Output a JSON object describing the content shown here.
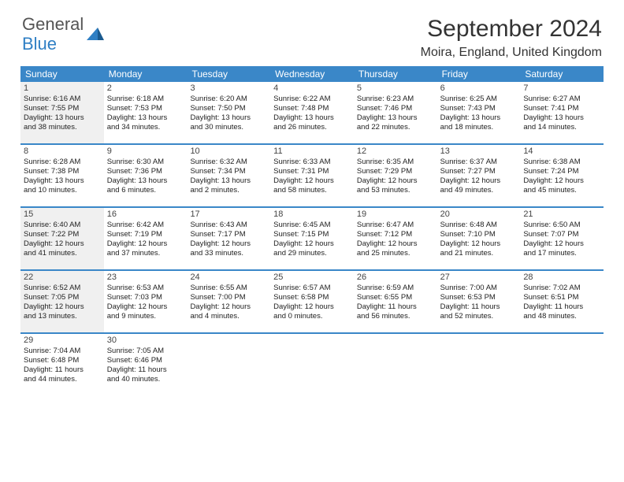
{
  "logo": {
    "text1": "General",
    "text2": "Blue",
    "color1": "#666666",
    "color2": "#2f7fc4"
  },
  "title": "September 2024",
  "location": "Moira, England, United Kingdom",
  "header_bg": "#3a87c8",
  "day_headers": [
    "Sunday",
    "Monday",
    "Tuesday",
    "Wednesday",
    "Thursday",
    "Friday",
    "Saturday"
  ],
  "shaded_days": [
    1,
    15,
    22
  ],
  "weeks": [
    [
      {
        "n": "1",
        "sr": "Sunrise: 6:16 AM",
        "ss": "Sunset: 7:55 PM",
        "d1": "Daylight: 13 hours",
        "d2": "and 38 minutes."
      },
      {
        "n": "2",
        "sr": "Sunrise: 6:18 AM",
        "ss": "Sunset: 7:53 PM",
        "d1": "Daylight: 13 hours",
        "d2": "and 34 minutes."
      },
      {
        "n": "3",
        "sr": "Sunrise: 6:20 AM",
        "ss": "Sunset: 7:50 PM",
        "d1": "Daylight: 13 hours",
        "d2": "and 30 minutes."
      },
      {
        "n": "4",
        "sr": "Sunrise: 6:22 AM",
        "ss": "Sunset: 7:48 PM",
        "d1": "Daylight: 13 hours",
        "d2": "and 26 minutes."
      },
      {
        "n": "5",
        "sr": "Sunrise: 6:23 AM",
        "ss": "Sunset: 7:46 PM",
        "d1": "Daylight: 13 hours",
        "d2": "and 22 minutes."
      },
      {
        "n": "6",
        "sr": "Sunrise: 6:25 AM",
        "ss": "Sunset: 7:43 PM",
        "d1": "Daylight: 13 hours",
        "d2": "and 18 minutes."
      },
      {
        "n": "7",
        "sr": "Sunrise: 6:27 AM",
        "ss": "Sunset: 7:41 PM",
        "d1": "Daylight: 13 hours",
        "d2": "and 14 minutes."
      }
    ],
    [
      {
        "n": "8",
        "sr": "Sunrise: 6:28 AM",
        "ss": "Sunset: 7:38 PM",
        "d1": "Daylight: 13 hours",
        "d2": "and 10 minutes."
      },
      {
        "n": "9",
        "sr": "Sunrise: 6:30 AM",
        "ss": "Sunset: 7:36 PM",
        "d1": "Daylight: 13 hours",
        "d2": "and 6 minutes."
      },
      {
        "n": "10",
        "sr": "Sunrise: 6:32 AM",
        "ss": "Sunset: 7:34 PM",
        "d1": "Daylight: 13 hours",
        "d2": "and 2 minutes."
      },
      {
        "n": "11",
        "sr": "Sunrise: 6:33 AM",
        "ss": "Sunset: 7:31 PM",
        "d1": "Daylight: 12 hours",
        "d2": "and 58 minutes."
      },
      {
        "n": "12",
        "sr": "Sunrise: 6:35 AM",
        "ss": "Sunset: 7:29 PM",
        "d1": "Daylight: 12 hours",
        "d2": "and 53 minutes."
      },
      {
        "n": "13",
        "sr": "Sunrise: 6:37 AM",
        "ss": "Sunset: 7:27 PM",
        "d1": "Daylight: 12 hours",
        "d2": "and 49 minutes."
      },
      {
        "n": "14",
        "sr": "Sunrise: 6:38 AM",
        "ss": "Sunset: 7:24 PM",
        "d1": "Daylight: 12 hours",
        "d2": "and 45 minutes."
      }
    ],
    [
      {
        "n": "15",
        "sr": "Sunrise: 6:40 AM",
        "ss": "Sunset: 7:22 PM",
        "d1": "Daylight: 12 hours",
        "d2": "and 41 minutes."
      },
      {
        "n": "16",
        "sr": "Sunrise: 6:42 AM",
        "ss": "Sunset: 7:19 PM",
        "d1": "Daylight: 12 hours",
        "d2": "and 37 minutes."
      },
      {
        "n": "17",
        "sr": "Sunrise: 6:43 AM",
        "ss": "Sunset: 7:17 PM",
        "d1": "Daylight: 12 hours",
        "d2": "and 33 minutes."
      },
      {
        "n": "18",
        "sr": "Sunrise: 6:45 AM",
        "ss": "Sunset: 7:15 PM",
        "d1": "Daylight: 12 hours",
        "d2": "and 29 minutes."
      },
      {
        "n": "19",
        "sr": "Sunrise: 6:47 AM",
        "ss": "Sunset: 7:12 PM",
        "d1": "Daylight: 12 hours",
        "d2": "and 25 minutes."
      },
      {
        "n": "20",
        "sr": "Sunrise: 6:48 AM",
        "ss": "Sunset: 7:10 PM",
        "d1": "Daylight: 12 hours",
        "d2": "and 21 minutes."
      },
      {
        "n": "21",
        "sr": "Sunrise: 6:50 AM",
        "ss": "Sunset: 7:07 PM",
        "d1": "Daylight: 12 hours",
        "d2": "and 17 minutes."
      }
    ],
    [
      {
        "n": "22",
        "sr": "Sunrise: 6:52 AM",
        "ss": "Sunset: 7:05 PM",
        "d1": "Daylight: 12 hours",
        "d2": "and 13 minutes."
      },
      {
        "n": "23",
        "sr": "Sunrise: 6:53 AM",
        "ss": "Sunset: 7:03 PM",
        "d1": "Daylight: 12 hours",
        "d2": "and 9 minutes."
      },
      {
        "n": "24",
        "sr": "Sunrise: 6:55 AM",
        "ss": "Sunset: 7:00 PM",
        "d1": "Daylight: 12 hours",
        "d2": "and 4 minutes."
      },
      {
        "n": "25",
        "sr": "Sunrise: 6:57 AM",
        "ss": "Sunset: 6:58 PM",
        "d1": "Daylight: 12 hours",
        "d2": "and 0 minutes."
      },
      {
        "n": "26",
        "sr": "Sunrise: 6:59 AM",
        "ss": "Sunset: 6:55 PM",
        "d1": "Daylight: 11 hours",
        "d2": "and 56 minutes."
      },
      {
        "n": "27",
        "sr": "Sunrise: 7:00 AM",
        "ss": "Sunset: 6:53 PM",
        "d1": "Daylight: 11 hours",
        "d2": "and 52 minutes."
      },
      {
        "n": "28",
        "sr": "Sunrise: 7:02 AM",
        "ss": "Sunset: 6:51 PM",
        "d1": "Daylight: 11 hours",
        "d2": "and 48 minutes."
      }
    ],
    [
      {
        "n": "29",
        "sr": "Sunrise: 7:04 AM",
        "ss": "Sunset: 6:48 PM",
        "d1": "Daylight: 11 hours",
        "d2": "and 44 minutes."
      },
      {
        "n": "30",
        "sr": "Sunrise: 7:05 AM",
        "ss": "Sunset: 6:46 PM",
        "d1": "Daylight: 11 hours",
        "d2": "and 40 minutes."
      },
      null,
      null,
      null,
      null,
      null
    ]
  ]
}
